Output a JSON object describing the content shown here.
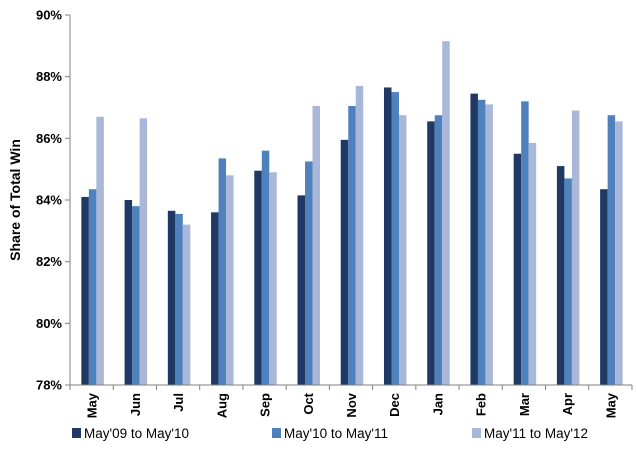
{
  "chart_data": {
    "type": "bar",
    "categories": [
      "May",
      "Jun",
      "Jul",
      "Aug",
      "Sep",
      "Oct",
      "Nov",
      "Dec",
      "Jan",
      "Feb",
      "Mar",
      "Apr",
      "May"
    ],
    "series": [
      {
        "name": "May'09 to May'10",
        "color": "#1f3864",
        "values": [
          84.1,
          84.0,
          83.65,
          83.6,
          84.95,
          84.15,
          85.95,
          87.65,
          86.55,
          87.45,
          85.5,
          85.1,
          84.35
        ]
      },
      {
        "name": "May'10 to May'11",
        "color": "#4f81bd",
        "values": [
          84.35,
          83.8,
          83.55,
          85.35,
          85.6,
          85.25,
          87.05,
          87.5,
          86.75,
          87.25,
          87.2,
          84.7,
          86.75
        ]
      },
      {
        "name": "May'11 to May'12",
        "color": "#a9b7d8",
        "values": [
          86.7,
          86.65,
          83.2,
          84.8,
          84.9,
          87.05,
          87.7,
          86.75,
          89.15,
          87.1,
          85.85,
          86.9,
          86.55
        ]
      }
    ],
    "ylabel": "Share of Total Win",
    "xlabel": "",
    "title": "",
    "ylim": [
      78,
      90
    ],
    "yticks": [
      78,
      80,
      82,
      84,
      86,
      88,
      90
    ],
    "ytick_labels": [
      "78%",
      "80%",
      "82%",
      "84%",
      "86%",
      "88%",
      "90%"
    ],
    "grid": false,
    "legend_position": "bottom"
  }
}
